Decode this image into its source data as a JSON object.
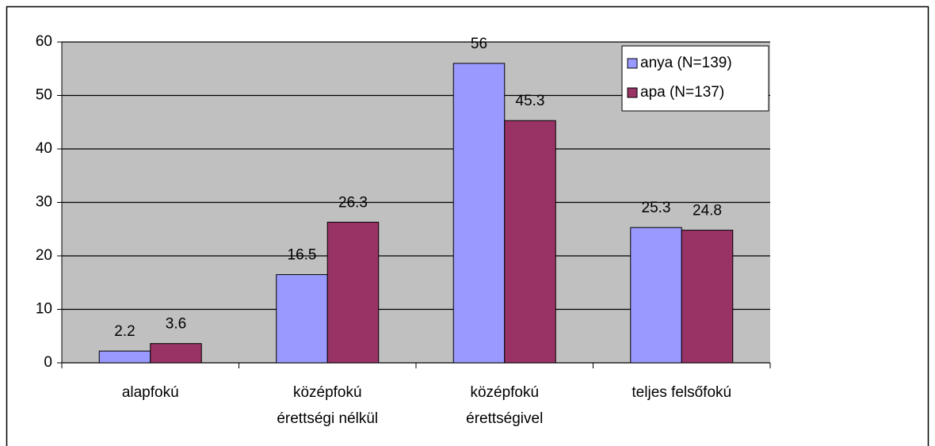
{
  "chart_data": {
    "type": "bar",
    "categories": [
      [
        "alapfokú"
      ],
      [
        "középfokú",
        "érettségi nélkül"
      ],
      [
        "középfokú",
        "érettségivel"
      ],
      [
        "teljes felsőfokú"
      ]
    ],
    "series": [
      {
        "name": "anya (N=139)",
        "color": "#9999ff",
        "values": [
          2.2,
          16.5,
          56,
          25.3
        ]
      },
      {
        "name": "apa (N=137)",
        "color": "#993366",
        "values": [
          3.6,
          26.3,
          45.3,
          24.8
        ]
      }
    ],
    "ylim": [
      0,
      60
    ],
    "yticks": [
      0,
      10,
      20,
      30,
      40,
      50,
      60
    ],
    "grid": true,
    "legend": "top-right"
  }
}
